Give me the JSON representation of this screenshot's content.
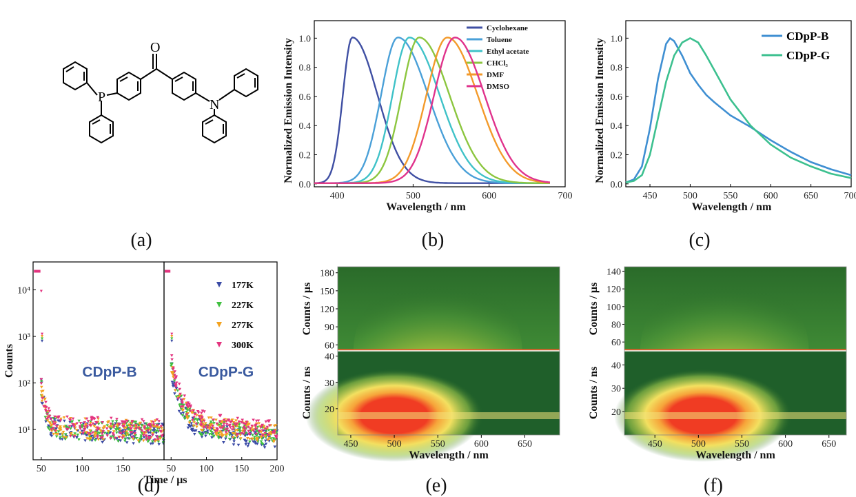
{
  "panel_labels": [
    "(a)",
    "(b)",
    "(c)",
    "(d)",
    "(e)",
    "(f)"
  ],
  "molecule": {
    "atoms": [
      "P",
      "O",
      "N"
    ]
  },
  "chart_data": [
    {
      "id": "b",
      "type": "line",
      "xlabel": "Wavelength / nm",
      "ylabel": "Normalized Emission Intensity",
      "xlim": [
        370,
        700
      ],
      "ylim": [
        -0.02,
        1.12
      ],
      "xticks": [
        "400",
        "500",
        "600",
        "700"
      ],
      "yticks": [
        "0.0",
        "0.2",
        "0.4",
        "0.6",
        "0.8",
        "1.0"
      ],
      "legend_position": "top-right",
      "series": [
        {
          "name": "Cyclohexane",
          "color": "#3f4fa3",
          "peak": 420,
          "fwhm_left": 28,
          "fwhm_right": 75,
          "start": 370,
          "end": 680
        },
        {
          "name": "Toluene",
          "color": "#4aa0d8",
          "peak": 480,
          "fwhm_left": 50,
          "fwhm_right": 90,
          "start": 370,
          "end": 680
        },
        {
          "name": "Ethyl acetate",
          "color": "#3fc2c8",
          "peak": 495,
          "fwhm_left": 50,
          "fwhm_right": 90,
          "start": 370,
          "end": 680
        },
        {
          "name": "CHCl₃",
          "color": "#8cc63f",
          "peak": 508,
          "fwhm_left": 52,
          "fwhm_right": 90,
          "start": 370,
          "end": 680
        },
        {
          "name": "DMF",
          "color": "#f39a2b",
          "peak": 545,
          "fwhm_left": 62,
          "fwhm_right": 90,
          "start": 370,
          "end": 680
        },
        {
          "name": "DMSO",
          "color": "#e0338c",
          "peak": 555,
          "fwhm_left": 62,
          "fwhm_right": 88,
          "start": 370,
          "end": 680
        }
      ]
    },
    {
      "id": "c",
      "type": "line",
      "xlabel": "Wavelength / nm",
      "ylabel": "Normalized Emission Intensity",
      "xlim": [
        420,
        700
      ],
      "ylim": [
        -0.02,
        1.12
      ],
      "xticks": [
        "450",
        "500",
        "550",
        "600",
        "650",
        "700"
      ],
      "yticks": [
        "0.0",
        "0.2",
        "0.4",
        "0.6",
        "0.8",
        "1.0"
      ],
      "legend_position": "top-right",
      "series": [
        {
          "name": "CDpP-B",
          "color": "#3f8fd2",
          "x": [
            420,
            430,
            440,
            450,
            460,
            470,
            475,
            480,
            490,
            500,
            510,
            520,
            530,
            550,
            575,
            600,
            625,
            650,
            675,
            700
          ],
          "y": [
            0.01,
            0.03,
            0.12,
            0.38,
            0.72,
            0.96,
            1.0,
            0.98,
            0.88,
            0.76,
            0.68,
            0.61,
            0.56,
            0.47,
            0.39,
            0.3,
            0.22,
            0.15,
            0.1,
            0.06
          ]
        },
        {
          "name": "CDpP-G",
          "color": "#3cc08f",
          "x": [
            420,
            430,
            440,
            450,
            460,
            470,
            480,
            490,
            500,
            510,
            520,
            530,
            550,
            575,
            600,
            625,
            650,
            675,
            700
          ],
          "y": [
            0.01,
            0.02,
            0.06,
            0.2,
            0.45,
            0.7,
            0.88,
            0.97,
            1.0,
            0.97,
            0.88,
            0.78,
            0.58,
            0.4,
            0.27,
            0.18,
            0.12,
            0.07,
            0.04
          ]
        }
      ]
    },
    {
      "id": "d",
      "type": "scatter",
      "xlabel": "Time / μs",
      "ylabel": "Counts",
      "yscale": "log",
      "ylim_decades": [
        0.35,
        4.6
      ],
      "yticks": [
        "10¹",
        "10²",
        "10³",
        "10⁴"
      ],
      "subpanels": [
        {
          "label": "CDpP-B",
          "xlim": [
            40,
            200
          ],
          "xticks": [
            "50",
            "100",
            "150"
          ]
        },
        {
          "label": "CDpP-G",
          "xlim": [
            40,
            200
          ],
          "xticks": [
            "50",
            "100",
            "150",
            "200"
          ]
        }
      ],
      "legend_position": "top-right",
      "series": [
        {
          "name": "177K",
          "color": "#3a4aa5",
          "marker": "triangle-down"
        },
        {
          "name": "227K",
          "color": "#3fc03f",
          "marker": "triangle-down"
        },
        {
          "name": "277K",
          "color": "#f3a21f",
          "marker": "triangle-down"
        },
        {
          "name": "300K",
          "color": "#e3347f",
          "marker": "triangle-down"
        }
      ]
    },
    {
      "id": "e",
      "type": "heatmap",
      "xlabel": "Wavelength / nm",
      "xlim": [
        435,
        690
      ],
      "xticks": [
        "450",
        "500",
        "550",
        "600",
        "650"
      ],
      "top": {
        "ylabel": "Counts / μs",
        "ylim": [
          50,
          190
        ],
        "yticks": [
          "60",
          "90",
          "120",
          "150",
          "180"
        ],
        "peak_x": 550
      },
      "bottom": {
        "ylabel": "Counts / ns",
        "ylim": [
          10,
          42
        ],
        "yticks": [
          "20",
          "30",
          "40"
        ],
        "peak_x": 500
      }
    },
    {
      "id": "f",
      "type": "heatmap",
      "xlabel": "Wavelength / nm",
      "xlim": [
        415,
        670
      ],
      "xticks": [
        "450",
        "500",
        "550",
        "600",
        "650"
      ],
      "top": {
        "ylabel": "Counts / μs",
        "ylim": [
          50,
          145
        ],
        "yticks": [
          "60",
          "80",
          "100",
          "120",
          "140"
        ],
        "peak_x": 530
      },
      "bottom": {
        "ylabel": "Counts / ns",
        "ylim": [
          10,
          46
        ],
        "yticks": [
          "20",
          "30",
          "40"
        ],
        "peak_x": 505
      }
    }
  ]
}
